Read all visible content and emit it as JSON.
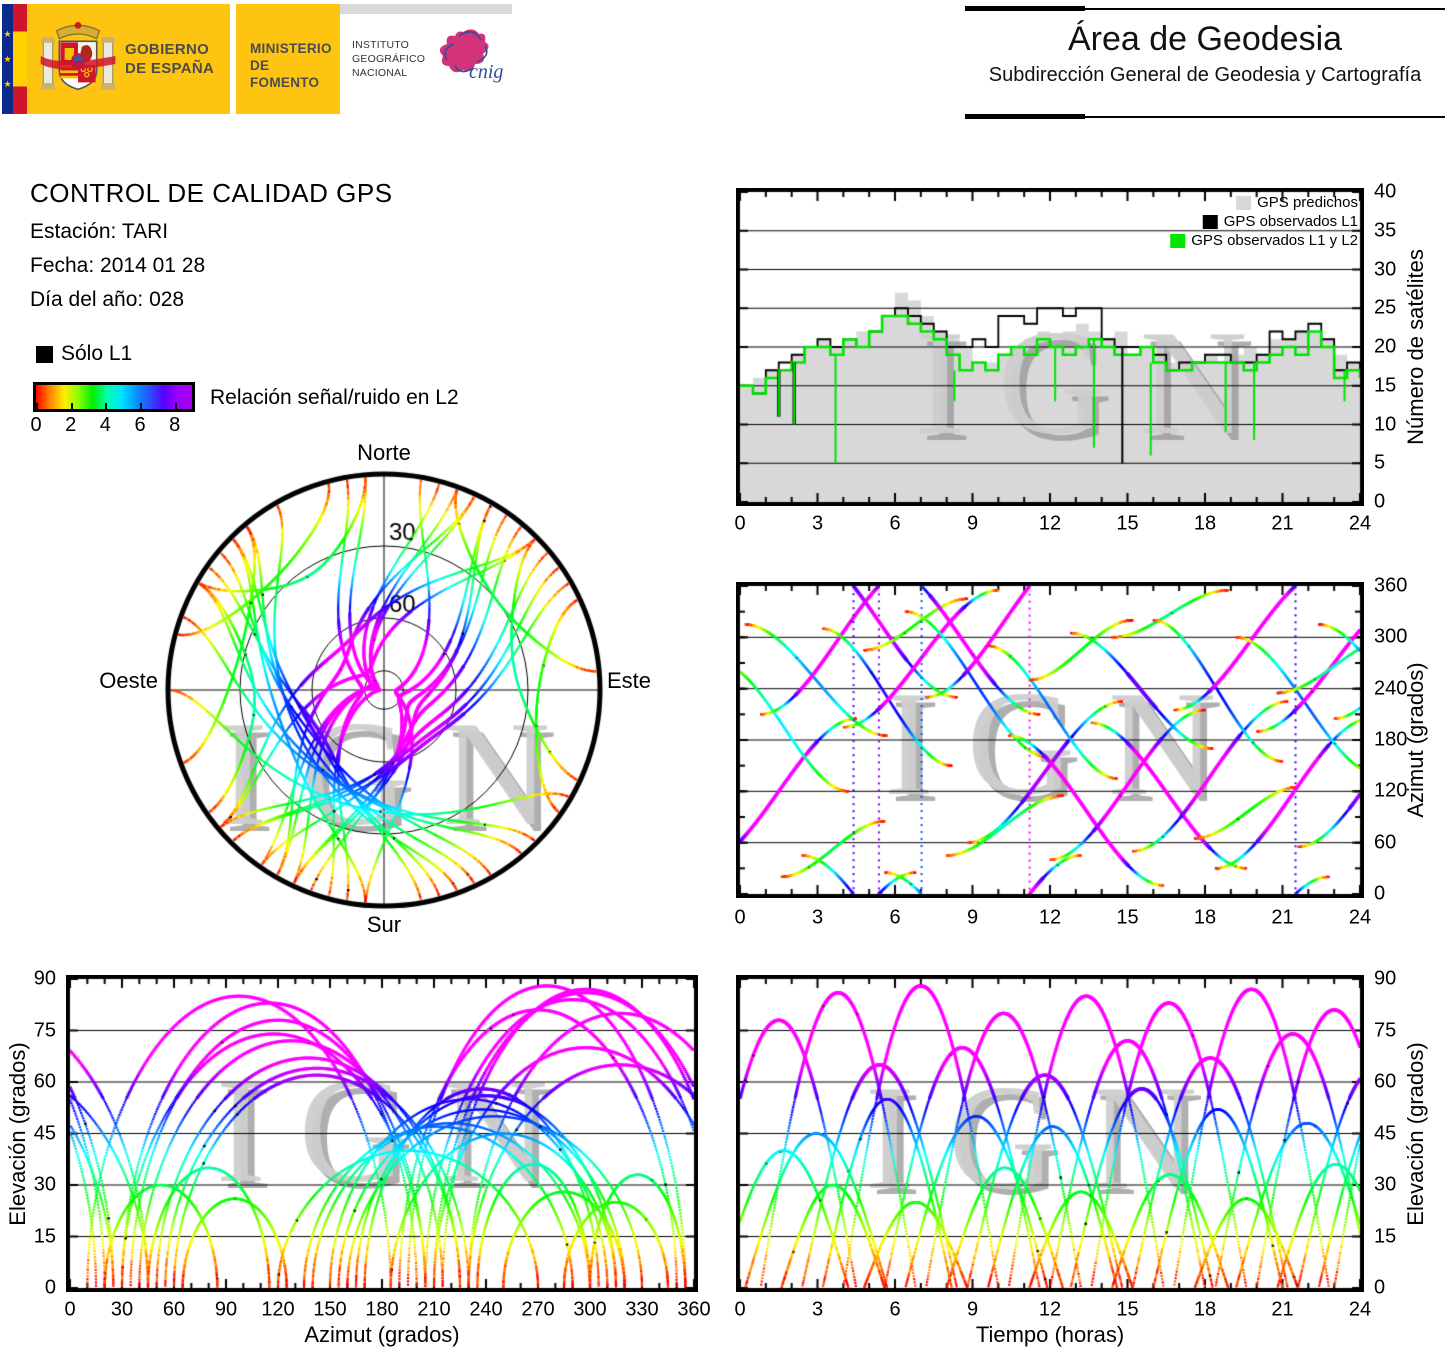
{
  "header": {
    "gobierno1": "GOBIERNO",
    "gobierno2": "DE ESPAÑA",
    "ministerio1": "MINISTERIO",
    "ministerio2": "DE FOMENTO",
    "instituto": "INSTITUTO GEOGRÁFICO NACIONAL",
    "cnig": "cnig",
    "area_title": "Área de Geodesia",
    "area_subtitle": "Subdirección General de Geodesia y Cartografía"
  },
  "info": {
    "title": "CONTROL DE CALIDAD GPS",
    "station": "Estación: TARI",
    "date": "Fecha: 2014 01 28",
    "doy": "Día del año: 028",
    "solo_l1": "Sólo L1",
    "colorbar_label": "Relación señal/ruido en L2",
    "colorbar_ticks": [
      0,
      2,
      4,
      6,
      8
    ],
    "colorbar_max": 9,
    "colorbar_stops": [
      "#ff0000",
      "#ff8800",
      "#ffee00",
      "#88ff00",
      "#00ee00",
      "#00ffaa",
      "#00e5ff",
      "#0099ff",
      "#2b50ff",
      "#5500ff",
      "#9900ff",
      "#a800ee"
    ]
  },
  "watermark": "IGN",
  "colors": {
    "predicted_gray": "#d8d8d8",
    "observed_black": "#000000",
    "observed_green": "#00e400",
    "banner_yellow": "#fdc412",
    "eu_blue": "#0a2a8c",
    "flag_red": "#cf142b",
    "flag_yellow": "#ffd100",
    "cnig_pink": "#d23277",
    "cnig_blue": "#2b4ea2",
    "watermark_light": "#cdcdcd",
    "watermark_dark": "#9b9b9b"
  },
  "skyplot": {
    "north": "Norte",
    "south": "Sur",
    "east": "Este",
    "west": "Oeste",
    "rings": [
      30,
      60,
      82
    ],
    "ring_labels": [
      "30",
      "60"
    ]
  },
  "chart_data": {
    "satellites_note": "each pass: [rise_time_h, duration_h, peak_elevation_deg, rise_azimuth_deg, set_azimuth_deg]; color along track encodes L2 signal/noise (red=0 .. violet/magenta=9)",
    "satellites": [
      [
        -1.5,
        6.0,
        78,
        35,
        205
      ],
      [
        -0.8,
        5.0,
        40,
        270,
        120
      ],
      [
        0.2,
        5.5,
        45,
        315,
        185
      ],
      [
        0.8,
        6.0,
        86,
        210,
        25
      ],
      [
        1.6,
        4.0,
        30,
        20,
        85
      ],
      [
        2.4,
        6.0,
        65,
        45,
        230
      ],
      [
        3.2,
        5.0,
        55,
        310,
        150
      ],
      [
        4.0,
        6.0,
        88,
        195,
        355
      ],
      [
        4.8,
        4.0,
        25,
        285,
        345
      ],
      [
        5.6,
        6.0,
        70,
        25,
        210
      ],
      [
        6.4,
        5.5,
        50,
        330,
        160
      ],
      [
        7.2,
        6.0,
        80,
        230,
        45
      ],
      [
        8.0,
        4.5,
        35,
        45,
        115
      ],
      [
        8.8,
        6.0,
        62,
        60,
        225
      ],
      [
        9.6,
        5.0,
        47,
        290,
        135
      ],
      [
        10.4,
        6.0,
        85,
        185,
        10
      ],
      [
        11.2,
        4.0,
        28,
        250,
        320
      ],
      [
        12.0,
        6.0,
        72,
        40,
        215
      ],
      [
        12.8,
        5.5,
        58,
        305,
        170
      ],
      [
        13.6,
        6.0,
        83,
        200,
        30
      ],
      [
        14.4,
        4.5,
        33,
        300,
        355
      ],
      [
        15.2,
        6.0,
        67,
        50,
        225
      ],
      [
        16.0,
        5.0,
        52,
        320,
        155
      ],
      [
        16.8,
        6.0,
        87,
        215,
        20
      ],
      [
        17.6,
        4.0,
        26,
        65,
        125
      ],
      [
        18.4,
        6.0,
        74,
        30,
        205
      ],
      [
        19.2,
        5.5,
        48,
        300,
        140
      ],
      [
        20.0,
        6.0,
        81,
        190,
        350
      ],
      [
        20.8,
        4.5,
        36,
        235,
        300
      ],
      [
        21.6,
        6.0,
        64,
        55,
        230
      ],
      [
        22.4,
        5.5,
        56,
        315,
        165
      ],
      [
        23.0,
        6.0,
        84,
        205,
        15
      ]
    ],
    "count_chart": {
      "type": "area",
      "ylabel": "Número de satélites",
      "xlim": [
        0,
        24
      ],
      "ylim": [
        0,
        40
      ],
      "xticks": [
        0,
        3,
        6,
        9,
        12,
        15,
        18,
        21,
        24
      ],
      "yticks": [
        0,
        5,
        10,
        15,
        20,
        25,
        30,
        35,
        40
      ],
      "step_hours": 0.5,
      "legend": [
        {
          "label": "GPS predichos",
          "color": "#d8d8d8"
        },
        {
          "label": "GPS observados L1",
          "color": "#000000"
        },
        {
          "label": "GPS observados L1 y L2",
          "color": "#00e400"
        }
      ],
      "predichos": [
        15,
        16,
        17,
        17,
        19,
        20,
        21,
        20,
        21,
        22,
        22,
        24,
        27,
        26,
        24,
        22,
        21,
        20,
        18,
        18,
        19,
        20,
        21,
        22,
        21,
        22,
        23,
        22,
        21,
        22,
        19,
        20,
        19,
        18,
        17,
        18,
        19,
        18,
        19,
        20,
        19,
        21,
        21,
        22,
        22,
        21,
        19,
        18,
        17
      ],
      "observados_l1": [
        15,
        14,
        17,
        18,
        19,
        20,
        21,
        20,
        21,
        20,
        22,
        24,
        25,
        24,
        23,
        22,
        20,
        20,
        21,
        20,
        24,
        24,
        23,
        25,
        25,
        24,
        25,
        25,
        21,
        20,
        20,
        20,
        19,
        17,
        18,
        18,
        19,
        19,
        18,
        18,
        19,
        22,
        21,
        22,
        23,
        21,
        17,
        18,
        17
      ],
      "observados_l1_l2": [
        15,
        14,
        16,
        17,
        18,
        20,
        20,
        19,
        21,
        20,
        22,
        24,
        24,
        23,
        22,
        21,
        19,
        17,
        18,
        17,
        19,
        20,
        19,
        21,
        20,
        19,
        20,
        21,
        20,
        19,
        19,
        20,
        18,
        17,
        17,
        18,
        18,
        18,
        18,
        17,
        18,
        19,
        20,
        19,
        22,
        20,
        16,
        17,
        16
      ],
      "spikes": [
        {
          "t": 1.5,
          "v": 11,
          "series": "both"
        },
        {
          "t": 2.1,
          "v": 10,
          "series": "both"
        },
        {
          "t": 3.7,
          "v": 5,
          "series": "l1l2"
        },
        {
          "t": 8.3,
          "v": 13,
          "series": "l1l2"
        },
        {
          "t": 12.2,
          "v": 13,
          "series": "l1l2"
        },
        {
          "t": 13.7,
          "v": 7,
          "series": "l1l2"
        },
        {
          "t": 14.8,
          "v": 5,
          "series": "l1"
        },
        {
          "t": 15.9,
          "v": 6,
          "series": "l1l2"
        },
        {
          "t": 18.8,
          "v": 9,
          "series": "l1l2"
        },
        {
          "t": 19.9,
          "v": 8,
          "series": "l1l2"
        },
        {
          "t": 23.4,
          "v": 13,
          "series": "l1l2"
        }
      ]
    },
    "azimuth_time_chart": {
      "type": "scatter",
      "ylabel": "Azimut (grados)",
      "xlim": [
        0,
        24
      ],
      "ylim": [
        0,
        360
      ],
      "xticks": [
        0,
        3,
        6,
        9,
        12,
        15,
        18,
        21,
        24
      ],
      "yticks": [
        0,
        60,
        120,
        180,
        240,
        300,
        360
      ]
    },
    "elev_azimuth_chart": {
      "type": "scatter",
      "xlabel": "Azimut (grados)",
      "ylabel": "Elevación (grados)",
      "xlim": [
        0,
        360
      ],
      "ylim": [
        0,
        90
      ],
      "xticks": [
        0,
        30,
        60,
        90,
        120,
        150,
        180,
        210,
        240,
        270,
        300,
        330,
        360
      ],
      "yticks": [
        0,
        15,
        30,
        45,
        60,
        75,
        90
      ]
    },
    "elev_time_chart": {
      "type": "scatter",
      "xlabel": "Tiempo (horas)",
      "ylabel": "Elevación (grados)",
      "xlim": [
        0,
        24
      ],
      "ylim": [
        0,
        90
      ],
      "xticks": [
        0,
        3,
        6,
        9,
        12,
        15,
        18,
        21,
        24
      ],
      "yticks": [
        0,
        15,
        30,
        45,
        60,
        75,
        90
      ]
    }
  }
}
